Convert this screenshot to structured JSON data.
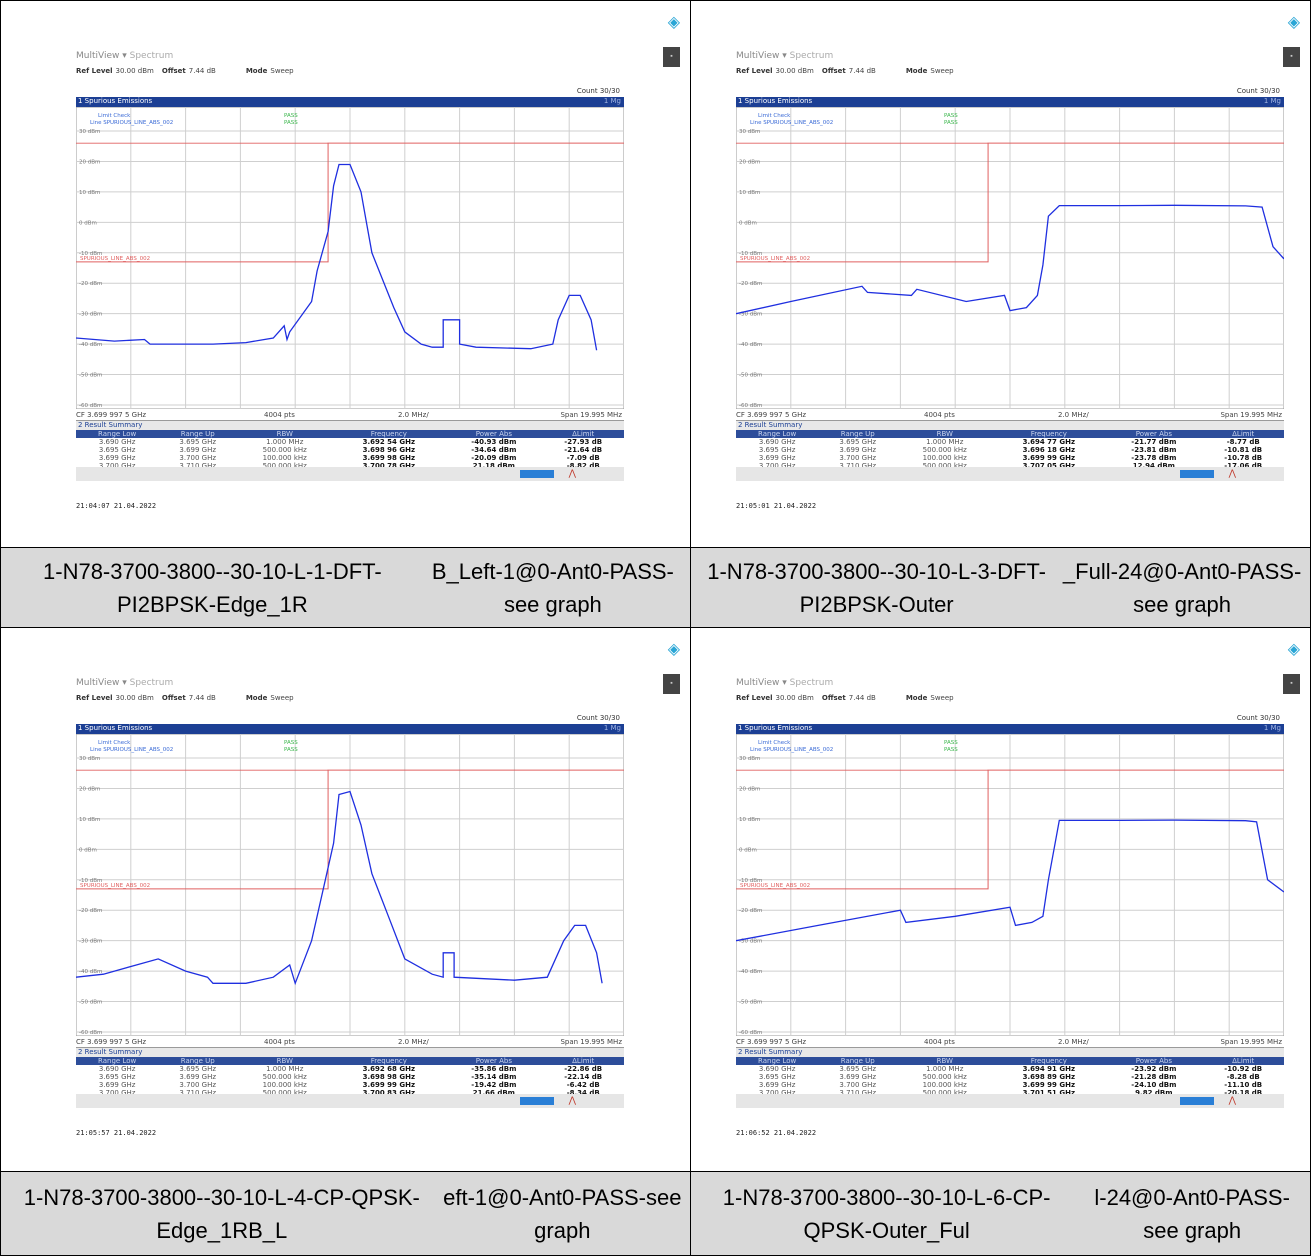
{
  "colors": {
    "accent": "#1c3f94",
    "trace": "#1f2fe0",
    "limit": "#e06060",
    "pass": "#39b54a",
    "caption_bg": "#d9d9d9"
  },
  "panels": [
    {
      "caption": [
        "1-N78-3700-3800--30-10-L-1-DFT-PI2BPSK-Edge_1R",
        "B_Left-1@0-Ant0-PASS-see graph"
      ],
      "screen": {
        "title1": "MultiView",
        "title2": "Spectrum",
        "ref_level_label": "Ref Level",
        "ref_level": "30.00 dBm",
        "offset_label": "Offset",
        "offset": "7.44 dB",
        "mode_label": "Mode",
        "mode": "Sweep",
        "count": "Count 30/30",
        "window_title": "1 Spurious Emissions",
        "window_tag": "1 Mg",
        "limit_check": "Limit Check",
        "limit_line": "Line SPURIOUS_LINE_ABS_002",
        "pass1": "PASS",
        "pass2": "PASS",
        "line_label": "SPURIOUS_LINE_ABS_002",
        "y_labels": [
          "30 dBm",
          "20 dBm",
          "10 dBm",
          "0 dBm",
          "-10 dBm",
          "-20 dBm",
          "-30 dBm",
          "-40 dBm",
          "-50 dBm",
          "-60 dBm"
        ],
        "cf": "CF 3.699 997 5 GHz",
        "pts": "4004 pts",
        "div": "2.0 MHz/",
        "span": "Span 19.995 MHz",
        "summary_title": "2 Result Summary",
        "headers": [
          "Range Low",
          "Range Up",
          "RBW",
          "Frequency",
          "Power Abs",
          "ΔLimit"
        ],
        "rows": [
          [
            "3.690 GHz",
            "3.695 GHz",
            "1.000 MHz",
            "3.692 54 GHz",
            "-40.93 dBm",
            "-27.93 dB"
          ],
          [
            "3.695 GHz",
            "3.699 GHz",
            "500.000 kHz",
            "3.698 96 GHz",
            "-34.64 dBm",
            "-21.64 dB"
          ],
          [
            "3.699 GHz",
            "3.700 GHz",
            "100.000 kHz",
            "3.699 98 GHz",
            "-20.09 dBm",
            "-7.09 dB"
          ],
          [
            "3.700 GHz",
            "3.710 GHz",
            "500.000 kHz",
            "3.700 78 GHz",
            "21.18 dBm",
            "-8.82 dB"
          ]
        ],
        "timestamp": "21:04:07  21.04.2022"
      },
      "trace_points": [
        [
          0,
          -38
        ],
        [
          14,
          -39
        ],
        [
          25,
          -38.5
        ],
        [
          27,
          -40
        ],
        [
          50,
          -40
        ],
        [
          62,
          -39.5
        ],
        [
          72,
          -38
        ],
        [
          76,
          -34
        ],
        [
          77,
          -38.5
        ],
        [
          78,
          -36
        ],
        [
          86,
          -26
        ],
        [
          88,
          -16
        ],
        [
          92,
          -3
        ],
        [
          94,
          12
        ],
        [
          96,
          19
        ],
        [
          100,
          19
        ],
        [
          104,
          10
        ],
        [
          106,
          0
        ],
        [
          108,
          -10
        ],
        [
          116,
          -28
        ],
        [
          120,
          -36
        ],
        [
          126,
          -40
        ],
        [
          130,
          -41
        ],
        [
          134,
          -41
        ],
        [
          134,
          -32
        ],
        [
          140,
          -32
        ],
        [
          140,
          -40
        ],
        [
          146,
          -41
        ],
        [
          166,
          -41.5
        ],
        [
          174,
          -40
        ],
        [
          176,
          -32
        ],
        [
          180,
          -24
        ],
        [
          184,
          -24
        ],
        [
          188,
          -32
        ],
        [
          190,
          -42
        ]
      ]
    },
    {
      "caption": [
        "1-N78-3700-3800--30-10-L-3-DFT-PI2BPSK-Outer",
        "_Full-24@0-Ant0-PASS-see graph"
      ],
      "screen": {
        "title1": "MultiView",
        "title2": "Spectrum",
        "ref_level_label": "Ref Level",
        "ref_level": "30.00 dBm",
        "offset_label": "Offset",
        "offset": "7.44 dB",
        "mode_label": "Mode",
        "mode": "Sweep",
        "count": "Count 30/30",
        "window_title": "1 Spurious Emissions",
        "window_tag": "1 Mg",
        "limit_check": "Limit Check",
        "limit_line": "Line SPURIOUS_LINE_ABS_002",
        "pass1": "PASS",
        "pass2": "PASS",
        "line_label": "SPURIOUS_LINE_ABS_002",
        "y_labels": [
          "30 dBm",
          "20 dBm",
          "10 dBm",
          "0 dBm",
          "-10 dBm",
          "-20 dBm",
          "-30 dBm",
          "-40 dBm",
          "-50 dBm",
          "-60 dBm"
        ],
        "cf": "CF 3.699 997 5 GHz",
        "pts": "4004 pts",
        "div": "2.0 MHz/",
        "span": "Span 19.995 MHz",
        "summary_title": "2 Result Summary",
        "headers": [
          "Range Low",
          "Range Up",
          "RBW",
          "Frequency",
          "Power Abs",
          "ΔLimit"
        ],
        "rows": [
          [
            "3.690 GHz",
            "3.695 GHz",
            "1.000 MHz",
            "3.694 77 GHz",
            "-21.77 dBm",
            "-8.77 dB"
          ],
          [
            "3.695 GHz",
            "3.699 GHz",
            "500.000 kHz",
            "3.696 18 GHz",
            "-23.81 dBm",
            "-10.81 dB"
          ],
          [
            "3.699 GHz",
            "3.700 GHz",
            "100.000 kHz",
            "3.699 99 GHz",
            "-23.78 dBm",
            "-10.78 dB"
          ],
          [
            "3.700 GHz",
            "3.710 GHz",
            "500.000 kHz",
            "3.707 05 GHz",
            "12.94 dBm",
            "-17.06 dB"
          ]
        ],
        "timestamp": "21:05:01  21.04.2022"
      },
      "trace_points": [
        [
          0,
          -30
        ],
        [
          20,
          -26
        ],
        [
          46,
          -21
        ],
        [
          48,
          -23
        ],
        [
          64,
          -24
        ],
        [
          66,
          -22
        ],
        [
          84,
          -26
        ],
        [
          98,
          -24
        ],
        [
          100,
          -29
        ],
        [
          106,
          -28
        ],
        [
          110,
          -24
        ],
        [
          112,
          -14
        ],
        [
          114,
          2
        ],
        [
          118,
          5.5
        ],
        [
          140,
          5.5
        ],
        [
          160,
          5.6
        ],
        [
          186,
          5.4
        ],
        [
          192,
          5
        ],
        [
          196,
          -8
        ],
        [
          200,
          -12
        ]
      ]
    },
    {
      "caption": [
        "1-N78-3700-3800--30-10-L-4-CP-QPSK-Edge_1RB_L",
        "eft-1@0-Ant0-PASS-see graph"
      ],
      "screen": {
        "title1": "MultiView",
        "title2": "Spectrum",
        "ref_level_label": "Ref Level",
        "ref_level": "30.00 dBm",
        "offset_label": "Offset",
        "offset": "7.44 dB",
        "mode_label": "Mode",
        "mode": "Sweep",
        "count": "Count 30/30",
        "window_title": "1 Spurious Emissions",
        "window_tag": "1 Mg",
        "limit_check": "Limit Check",
        "limit_line": "Line SPURIOUS_LINE_ABS_002",
        "pass1": "PASS",
        "pass2": "PASS",
        "line_label": "SPURIOUS_LINE_ABS_002",
        "y_labels": [
          "30 dBm",
          "20 dBm",
          "10 dBm",
          "0 dBm",
          "-10 dBm",
          "-20 dBm",
          "-30 dBm",
          "-40 dBm",
          "-50 dBm",
          "-60 dBm"
        ],
        "cf": "CF 3.699 997 5 GHz",
        "pts": "4004 pts",
        "div": "2.0 MHz/",
        "span": "Span 19.995 MHz",
        "summary_title": "2 Result Summary",
        "headers": [
          "Range Low",
          "Range Up",
          "RBW",
          "Frequency",
          "Power Abs",
          "ΔLimit"
        ],
        "rows": [
          [
            "3.690 GHz",
            "3.695 GHz",
            "1.000 MHz",
            "3.692 68 GHz",
            "-35.86 dBm",
            "-22.86 dB"
          ],
          [
            "3.695 GHz",
            "3.699 GHz",
            "500.000 kHz",
            "3.698 98 GHz",
            "-35.14 dBm",
            "-22.14 dB"
          ],
          [
            "3.699 GHz",
            "3.700 GHz",
            "100.000 kHz",
            "3.699 99 GHz",
            "-19.42 dBm",
            "-6.42 dB"
          ],
          [
            "3.700 GHz",
            "3.710 GHz",
            "500.000 kHz",
            "3.700 83 GHz",
            "21.66 dBm",
            "-8.34 dB"
          ]
        ],
        "timestamp": "21:05:57  21.04.2022"
      },
      "trace_points": [
        [
          0,
          -42
        ],
        [
          10,
          -41
        ],
        [
          22,
          -38
        ],
        [
          30,
          -36
        ],
        [
          40,
          -40
        ],
        [
          48,
          -42
        ],
        [
          50,
          -44
        ],
        [
          62,
          -44
        ],
        [
          72,
          -42
        ],
        [
          78,
          -38
        ],
        [
          80,
          -44
        ],
        [
          86,
          -30
        ],
        [
          90,
          -14
        ],
        [
          94,
          2
        ],
        [
          96,
          18
        ],
        [
          100,
          19
        ],
        [
          104,
          8
        ],
        [
          108,
          -8
        ],
        [
          114,
          -22
        ],
        [
          120,
          -36
        ],
        [
          130,
          -41
        ],
        [
          134,
          -42
        ],
        [
          134,
          -34
        ],
        [
          138,
          -34
        ],
        [
          138,
          -42
        ],
        [
          160,
          -43
        ],
        [
          172,
          -42
        ],
        [
          178,
          -30
        ],
        [
          182,
          -25
        ],
        [
          186,
          -25
        ],
        [
          190,
          -34
        ],
        [
          192,
          -44
        ]
      ]
    },
    {
      "caption": [
        "1-N78-3700-3800--30-10-L-6-CP-QPSK-Outer_Ful",
        "l-24@0-Ant0-PASS-see graph"
      ],
      "screen": {
        "title1": "MultiView",
        "title2": "Spectrum",
        "ref_level_label": "Ref Level",
        "ref_level": "30.00 dBm",
        "offset_label": "Offset",
        "offset": "7.44 dB",
        "mode_label": "Mode",
        "mode": "Sweep",
        "count": "Count 30/30",
        "window_title": "1 Spurious Emissions",
        "window_tag": "1 Mg",
        "limit_check": "Limit Check",
        "limit_line": "Line SPURIOUS_LINE_ABS_002",
        "pass1": "PASS",
        "pass2": "PASS",
        "line_label": "SPURIOUS_LINE_ABS_002",
        "y_labels": [
          "30 dBm",
          "20 dBm",
          "10 dBm",
          "0 dBm",
          "-10 dBm",
          "-20 dBm",
          "-30 dBm",
          "-40 dBm",
          "-50 dBm",
          "-60 dBm"
        ],
        "cf": "CF 3.699 997 5 GHz",
        "pts": "4004 pts",
        "div": "2.0 MHz/",
        "span": "Span 19.995 MHz",
        "summary_title": "2 Result Summary",
        "headers": [
          "Range Low",
          "Range Up",
          "RBW",
          "Frequency",
          "Power Abs",
          "ΔLimit"
        ],
        "rows": [
          [
            "3.690 GHz",
            "3.695 GHz",
            "1.000 MHz",
            "3.694 91 GHz",
            "-23.92 dBm",
            "-10.92 dB"
          ],
          [
            "3.695 GHz",
            "3.699 GHz",
            "500.000 kHz",
            "3.698 89 GHz",
            "-21.28 dBm",
            "-8.28 dB"
          ],
          [
            "3.699 GHz",
            "3.700 GHz",
            "100.000 kHz",
            "3.699 99 GHz",
            "-24.10 dBm",
            "-11.10 dB"
          ],
          [
            "3.700 GHz",
            "3.710 GHz",
            "500.000 kHz",
            "3.701 51 GHz",
            "9.82 dBm",
            "-20.18 dB"
          ]
        ],
        "timestamp": "21:06:52  21.04.2022"
      },
      "trace_points": [
        [
          0,
          -30
        ],
        [
          30,
          -25
        ],
        [
          60,
          -20
        ],
        [
          62,
          -24
        ],
        [
          80,
          -22
        ],
        [
          100,
          -19
        ],
        [
          102,
          -25
        ],
        [
          108,
          -24
        ],
        [
          112,
          -22
        ],
        [
          114,
          -10
        ],
        [
          118,
          9.5
        ],
        [
          140,
          9.5
        ],
        [
          160,
          9.6
        ],
        [
          186,
          9.4
        ],
        [
          190,
          9
        ],
        [
          194,
          -10
        ],
        [
          200,
          -14
        ]
      ]
    }
  ]
}
